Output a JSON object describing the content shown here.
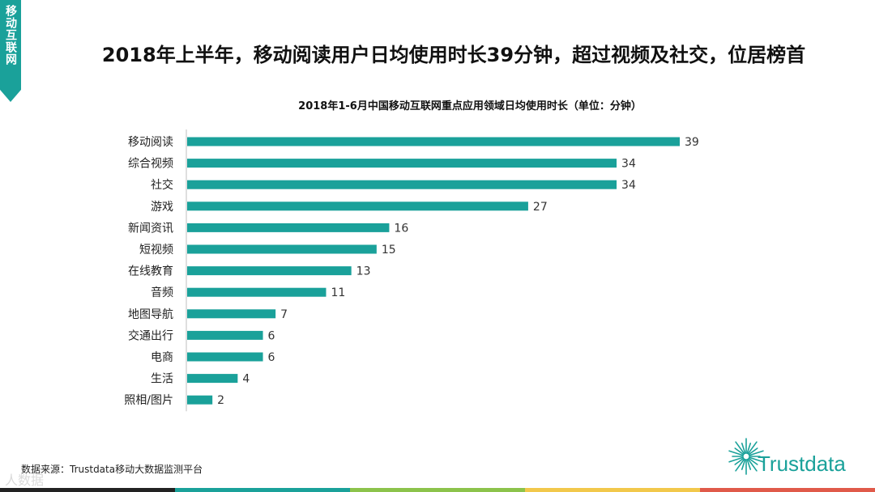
{
  "side_tab": {
    "label": "移动互联网"
  },
  "header": {
    "title": "2018年上半年，移动阅读用户日均使用时长39分钟，超过视频及社交，位居榜首"
  },
  "chart_data": {
    "type": "bar",
    "orientation": "horizontal",
    "title": "2018年1-6月中国移动互联网重点应用领域日均使用时长（单位：分钟）",
    "categories": [
      "移动阅读",
      "综合视频",
      "社交",
      "游戏",
      "新闻资讯",
      "短视频",
      "在线教育",
      "音频",
      "地图导航",
      "交通出行",
      "电商",
      "生活",
      "照相/图片"
    ],
    "values": [
      39,
      34,
      34,
      27,
      16,
      15,
      13,
      11,
      7,
      6,
      6,
      4,
      2
    ],
    "xlim": [
      0,
      39
    ],
    "grid": false,
    "legend": "none",
    "bar_color": "#1aa19a"
  },
  "footer": {
    "source": "数据来源：Trustdata移动大数据监测平台",
    "watermark": "人数据",
    "logo_text": "Trustdata",
    "stripe_colors": [
      "#222222",
      "#1aa19a",
      "#8cc34b",
      "#f2c84b",
      "#e05a4a"
    ]
  }
}
